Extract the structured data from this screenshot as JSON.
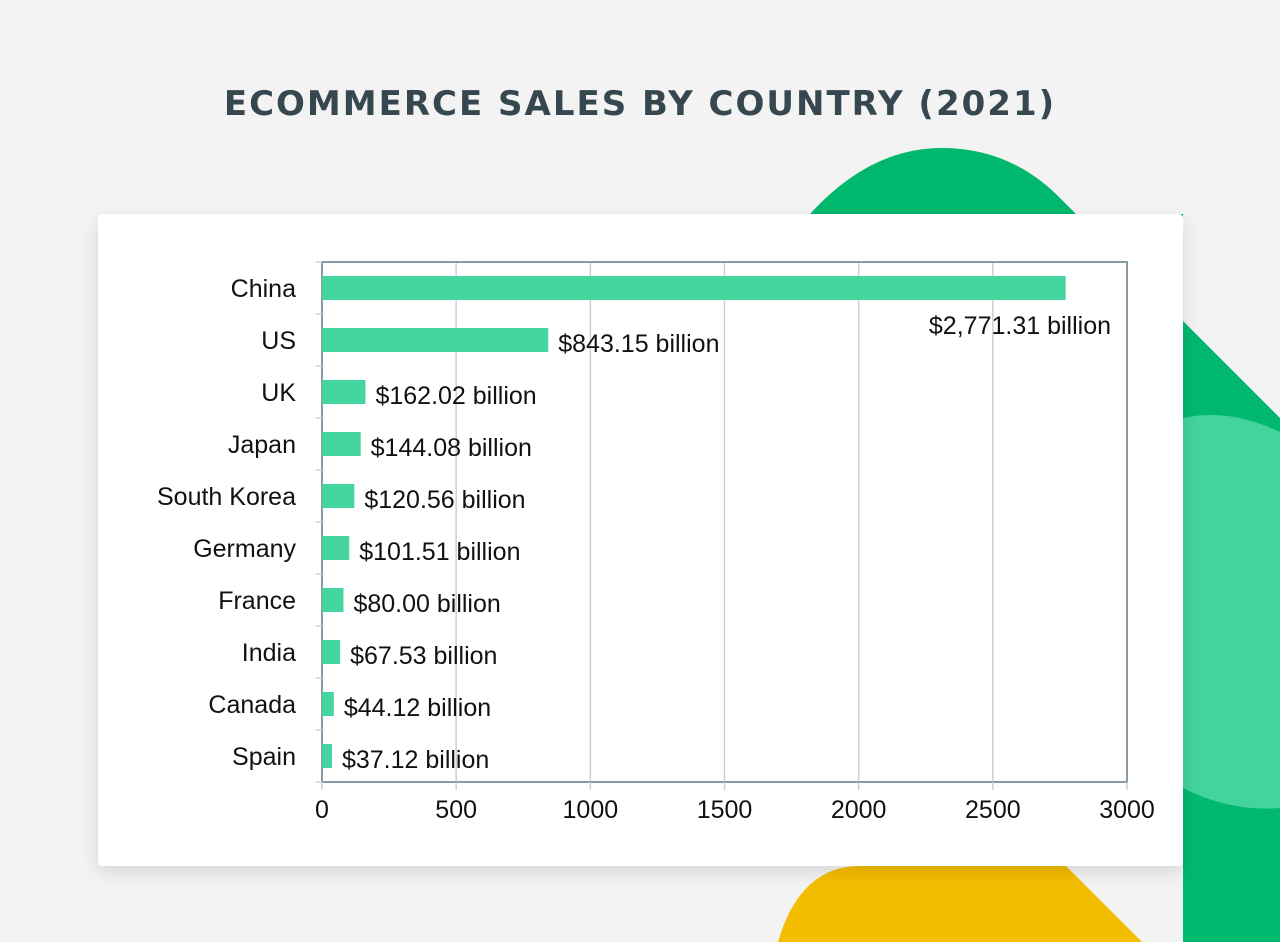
{
  "colors": {
    "background": "#f3f3f3",
    "bar": "#45d6a0",
    "title": "#37474f",
    "axis": "#8a9ba8",
    "grid": "#c9d1d7",
    "deco_green_dark": "#00b86e",
    "deco_green_light": "#43d39d",
    "deco_yellow": "#f5bd00"
  },
  "chart_data": {
    "type": "bar",
    "orientation": "horizontal",
    "title": "ECOMMERCE SALES BY COUNTRY (2021)",
    "categories": [
      "China",
      "US",
      "UK",
      "Japan",
      "South Korea",
      "Germany",
      "France",
      "India",
      "Canada",
      "Spain"
    ],
    "values": [
      2771.31,
      843.15,
      162.02,
      144.08,
      120.56,
      101.51,
      80.0,
      67.53,
      44.12,
      37.12
    ],
    "data_labels": [
      "$2,771.31 billion",
      "$843.15 billion",
      "$162.02 billion",
      "$144.08 billion",
      "$120.56 billion",
      "$101.51 billion",
      "$80.00 billion",
      "$67.53 billion",
      "$44.12 billion",
      "$37.12 billion"
    ],
    "xlim": [
      0,
      3000
    ],
    "x_ticks": [
      0,
      500,
      1000,
      1500,
      2000,
      2500,
      3000
    ],
    "x_tick_labels": [
      "0",
      "500",
      "1000",
      "1500",
      "2000",
      "2500",
      "3000"
    ],
    "grid": true,
    "xlabel": "",
    "ylabel": ""
  }
}
